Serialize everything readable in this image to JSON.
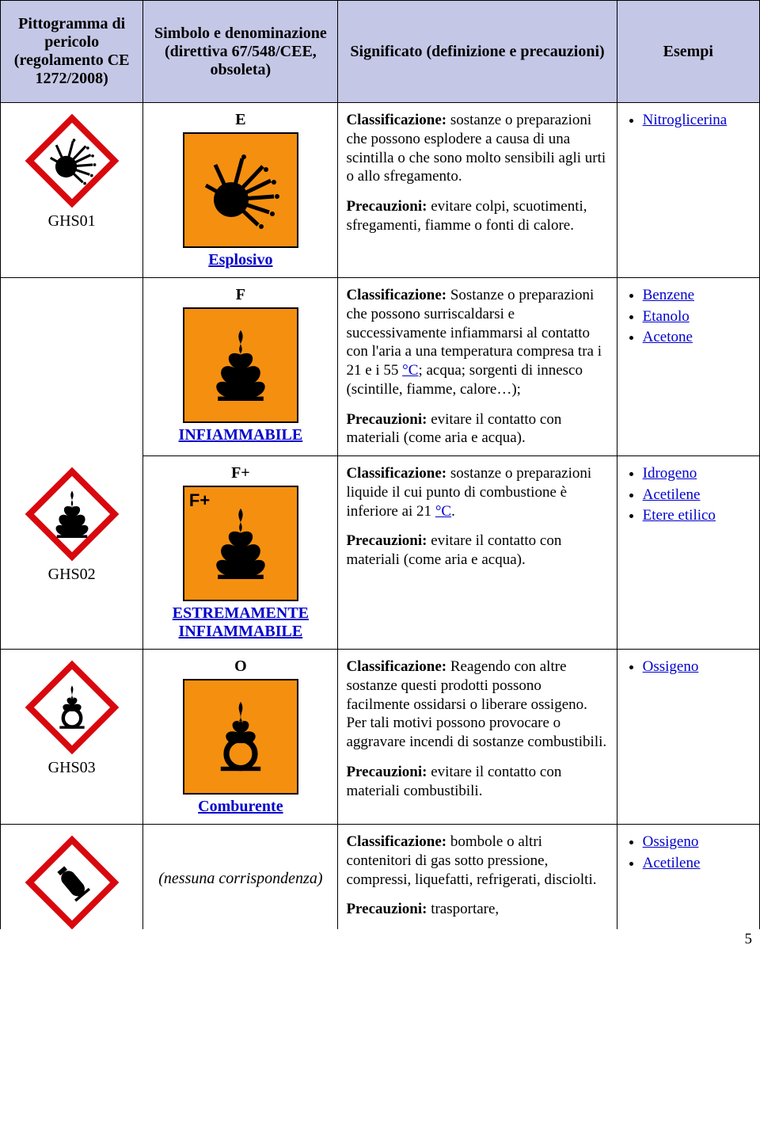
{
  "headers": {
    "col1": "Pittogramma di pericolo (regolamento CE 1272/2008)",
    "col2": "Simbolo e denominazione (direttiva 67/548/CEE, obsoleta)",
    "col3": "Significato (definizione e precauzioni)",
    "col4": "Esempi"
  },
  "rows": {
    "r1": {
      "ghs_code": "GHS01",
      "sym_letter": "E",
      "sym_name": "Esplosivo",
      "sig_html": "<p><b>Classificazione:</b> sostanze o preparazioni che possono esplodere a causa di una scintilla o che sono molto sensibili agli urti o allo sfregamento.</p><p class=\"last\"><b>Precauzioni:</b> evitare colpi, scuotimenti, sfregamenti, fiamme o fonti di calore.</p>",
      "examples": [
        "Nitroglicerina"
      ]
    },
    "r2a": {
      "sym_letter": "F",
      "sym_name": "INFIAMMABILE",
      "sig_html": "<p><b>Classificazione:</b> Sostanze o preparazioni che possono surriscaldarsi e successivamente infiammarsi al contatto con l'aria a una temperatura compresa tra i 21 e i 55 <span class=\"link\">°C</span>; acqua; sorgenti di innesco (scintille, fiamme, calore…);</p><p class=\"last\"><b>Precauzioni:</b> evitare il contatto con materiali (come aria e acqua).</p>",
      "examples": [
        "Benzene",
        "Etanolo",
        "Acetone"
      ]
    },
    "r2b": {
      "ghs_code": "GHS02",
      "sym_letter": "F+",
      "sym_name": "ESTREMAMENTE INFIAMMABILE",
      "sig_html": "<p><b>Classificazione:</b> sostanze o preparazioni liquide il cui punto di combustione è inferiore ai 21 <span class=\"link\">°C</span>.</p><p class=\"last\"><b>Precauzioni:</b> evitare il contatto con materiali (come aria e acqua).</p>",
      "examples": [
        "Idrogeno",
        "Acetilene",
        "Etere etilico"
      ]
    },
    "r3": {
      "ghs_code": "GHS03",
      "sym_letter": "O",
      "sym_name": "Comburente",
      "sig_html": "<p><b>Classificazione:</b> Reagendo con altre sostanze questi prodotti possono facilmente ossidarsi o liberare ossigeno. Per tali motivi possono provocare o aggravare incendi di sostanze combustibili.</p><p class=\"last\"><b>Precauzioni:</b> evitare il contatto con materiali combustibili.</p>",
      "examples": [
        "Ossigeno"
      ]
    },
    "r4": {
      "sym_name_plain": "(nessuna corrispondenza)",
      "sig_html": "<p><b>Classificazione:</b> bombole o altri contenitori di gas sotto pressione, compressi, liquefatti, refrigerati, disciolti.</p><p class=\"last\"><b>Precauzioni:</b> trasportare,</p>",
      "examples": [
        "Ossigeno",
        "Acetilene"
      ]
    }
  },
  "page_number": "5",
  "colors": {
    "header_bg": "#c5c7e6",
    "orange": "#f58f10",
    "red_border": "#d8090e",
    "link": "#0000cc"
  }
}
